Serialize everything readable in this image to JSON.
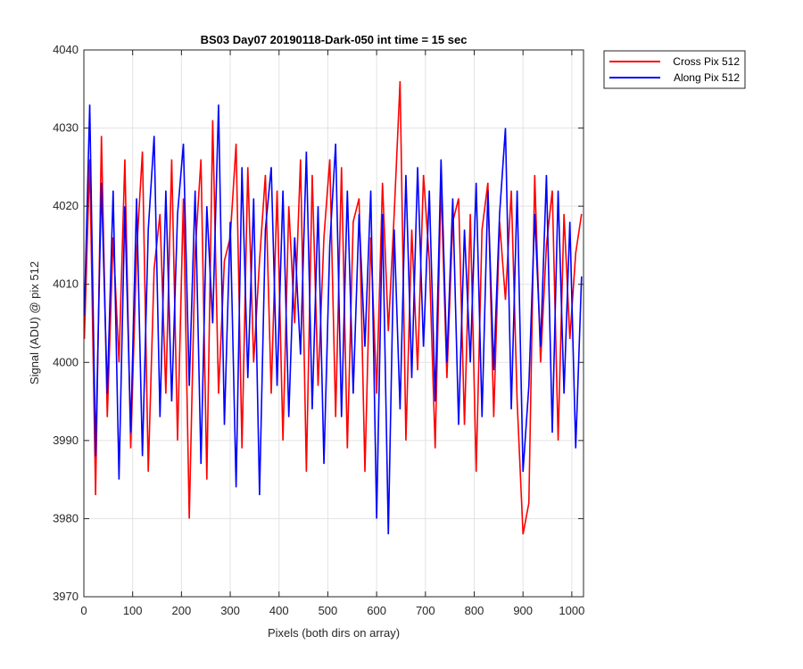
{
  "chart_data": {
    "type": "line",
    "title": "BS03 Day07 20190118-Dark-050 int time = 15 sec",
    "xlabel": "Pixels (both dirs on array)",
    "ylabel": "Signal (ADU) @ pix 512",
    "xlim": [
      0,
      1024
    ],
    "ylim": [
      3970,
      4040
    ],
    "xticks": [
      0,
      100,
      200,
      300,
      400,
      500,
      600,
      700,
      800,
      900,
      1000
    ],
    "yticks": [
      3970,
      3980,
      3990,
      4000,
      4010,
      4020,
      4030,
      4040
    ],
    "grid": true,
    "legend_position": "outside-top-right",
    "series": [
      {
        "name": "Cross Pix 512",
        "color": "#ff0000",
        "x": [
          1,
          12,
          24,
          36,
          48,
          60,
          72,
          84,
          96,
          108,
          120,
          132,
          144,
          156,
          168,
          180,
          192,
          204,
          216,
          228,
          240,
          252,
          264,
          276,
          288,
          300,
          312,
          324,
          336,
          348,
          360,
          372,
          384,
          396,
          408,
          420,
          432,
          444,
          456,
          468,
          480,
          492,
          504,
          516,
          528,
          540,
          552,
          564,
          576,
          588,
          600,
          612,
          624,
          636,
          648,
          660,
          672,
          684,
          696,
          708,
          720,
          732,
          744,
          756,
          768,
          780,
          792,
          804,
          816,
          828,
          840,
          852,
          864,
          876,
          888,
          900,
          912,
          924,
          936,
          948,
          960,
          972,
          984,
          996,
          1008,
          1020
        ],
        "values": [
          4003,
          4026,
          3983,
          4029,
          3993,
          4016,
          4000,
          4026,
          3989,
          4014,
          4027,
          3986,
          4012,
          4019,
          3996,
          4026,
          3990,
          4021,
          3980,
          4014,
          4026,
          3985,
          4031,
          3996,
          4013,
          4016,
          4028,
          3989,
          4025,
          4000,
          4013,
          4024,
          3996,
          4022,
          3990,
          4020,
          4005,
          4026,
          3986,
          4024,
          3997,
          4016,
          4026,
          3993,
          4025,
          3989,
          4018,
          4021,
          3986,
          4016,
          3996,
          4023,
          4004,
          4019,
          4036,
          3990,
          4017,
          3999,
          4024,
          4013,
          3989,
          4023,
          3998,
          4018,
          4021,
          3992,
          4019,
          3986,
          4017,
          4023,
          3993,
          4018,
          4008,
          4022,
          3995,
          3978,
          3982,
          4024,
          4000,
          4015,
          4022,
          3990,
          4019,
          4003,
          4014,
          4019
        ]
      },
      {
        "name": "Along Pix 512",
        "color": "#0000ff",
        "x": [
          1,
          12,
          24,
          36,
          48,
          60,
          72,
          84,
          96,
          108,
          120,
          132,
          144,
          156,
          168,
          180,
          192,
          204,
          216,
          228,
          240,
          252,
          264,
          276,
          288,
          300,
          312,
          324,
          336,
          348,
          360,
          372,
          384,
          396,
          408,
          420,
          432,
          444,
          456,
          468,
          480,
          492,
          504,
          516,
          528,
          540,
          552,
          564,
          576,
          588,
          600,
          612,
          624,
          636,
          648,
          660,
          672,
          684,
          696,
          708,
          720,
          732,
          744,
          756,
          768,
          780,
          792,
          804,
          816,
          828,
          840,
          852,
          864,
          876,
          888,
          900,
          912,
          924,
          936,
          948,
          960,
          972,
          984,
          996,
          1008,
          1020
        ],
        "values": [
          4006,
          4033,
          3988,
          4023,
          3996,
          4022,
          3985,
          4020,
          3991,
          4021,
          3988,
          4017,
          4029,
          3993,
          4022,
          3995,
          4019,
          4028,
          3997,
          4022,
          3987,
          4020,
          4005,
          4033,
          3992,
          4018,
          3984,
          4025,
          3998,
          4021,
          3983,
          4017,
          4025,
          3997,
          4022,
          3993,
          4016,
          4001,
          4027,
          3994,
          4020,
          3987,
          4015,
          4028,
          3993,
          4022,
          3996,
          4019,
          4002,
          4022,
          3980,
          4019,
          3978,
          4017,
          3994,
          4024,
          3998,
          4025,
          4002,
          4022,
          3995,
          4026,
          4000,
          4021,
          3992,
          4017,
          4000,
          4023,
          3993,
          4022,
          3999,
          4019,
          4030,
          3994,
          4022,
          3986,
          3997,
          4019,
          4002,
          4024,
          3991,
          4022,
          3996,
          4018,
          3989,
          4011
        ]
      }
    ]
  }
}
